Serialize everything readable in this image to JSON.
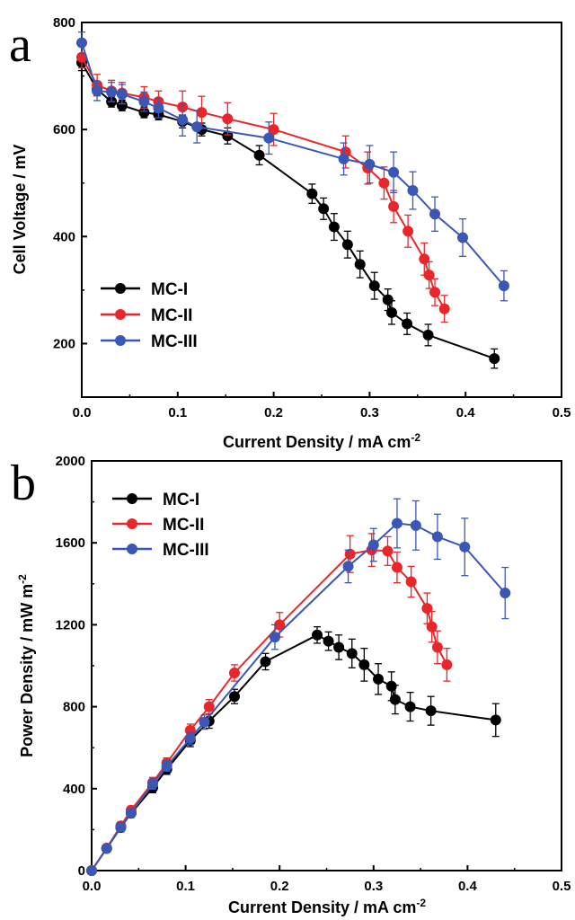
{
  "colors": {
    "MC-I": "#000000",
    "MC-II": "#e8262b",
    "MC-III": "#3a57b5"
  },
  "chart_data": [
    {
      "type": "line",
      "panel_label": "a",
      "xlabel": "Current Density / mA cm",
      "xlabel_sup": "-2",
      "ylabel": "Cell Voltage / mV",
      "xlim": [
        0.0,
        0.5
      ],
      "ylim": [
        100,
        800
      ],
      "x_ticks": [
        0.0,
        0.1,
        0.2,
        0.3,
        0.4,
        0.5
      ],
      "x_tick_labels": [
        "0.0",
        "0.1",
        "0.2",
        "0.3",
        "0.4",
        "0.5"
      ],
      "y_ticks": [
        200,
        400,
        600,
        800
      ],
      "y_tick_labels": [
        "200",
        "400",
        "600",
        "800"
      ],
      "legend_position": "bottom-left",
      "grid": false,
      "series": [
        {
          "name": "MC-I",
          "x": [
            0.0,
            0.016,
            0.031,
            0.042,
            0.065,
            0.08,
            0.105,
            0.125,
            0.152,
            0.185,
            0.24,
            0.252,
            0.263,
            0.277,
            0.29,
            0.305,
            0.319,
            0.323,
            0.339,
            0.361,
            0.43
          ],
          "y": [
            725,
            675,
            652,
            645,
            632,
            628,
            615,
            600,
            588,
            552,
            480,
            452,
            418,
            385,
            348,
            308,
            282,
            258,
            237,
            216,
            172
          ],
          "err": [
            15,
            12,
            10,
            10,
            10,
            10,
            12,
            12,
            15,
            18,
            18,
            20,
            25,
            25,
            25,
            25,
            20,
            22,
            20,
            20,
            18
          ]
        },
        {
          "name": "MC-II",
          "x": [
            0.0,
            0.016,
            0.031,
            0.042,
            0.065,
            0.08,
            0.105,
            0.125,
            0.152,
            0.2,
            0.275,
            0.298,
            0.315,
            0.325,
            0.34,
            0.357,
            0.362,
            0.368,
            0.378
          ],
          "y": [
            735,
            683,
            672,
            668,
            660,
            652,
            642,
            632,
            620,
            600,
            558,
            528,
            500,
            456,
            410,
            358,
            328,
            296,
            265
          ],
          "err": [
            20,
            20,
            20,
            20,
            20,
            20,
            30,
            30,
            30,
            30,
            30,
            30,
            30,
            30,
            30,
            30,
            25,
            25,
            25
          ]
        },
        {
          "name": "MC-III",
          "x": [
            0.0,
            0.016,
            0.031,
            0.042,
            0.065,
            0.08,
            0.105,
            0.12,
            0.195,
            0.273,
            0.3,
            0.325,
            0.345,
            0.368,
            0.397,
            0.44
          ],
          "y": [
            762,
            672,
            670,
            666,
            652,
            640,
            618,
            605,
            584,
            545,
            535,
            520,
            486,
            442,
            398,
            308
          ],
          "err": [
            20,
            18,
            18,
            18,
            18,
            18,
            30,
            30,
            30,
            30,
            35,
            38,
            35,
            32,
            35,
            28
          ]
        }
      ]
    },
    {
      "type": "line",
      "panel_label": "b",
      "xlabel": "Current Density / mA cm",
      "xlabel_sup": "-2",
      "ylabel": "Power Density / mW m",
      "ylabel_sup": "-2",
      "xlim": [
        0.0,
        0.5
      ],
      "ylim": [
        0,
        2000
      ],
      "x_ticks": [
        0.0,
        0.1,
        0.2,
        0.3,
        0.4,
        0.5
      ],
      "x_tick_labels": [
        "0.0",
        "0.1",
        "0.2",
        "0.3",
        "0.4",
        "0.5"
      ],
      "y_ticks": [
        0,
        400,
        800,
        1200,
        1600,
        2000
      ],
      "y_tick_labels": [
        "0",
        "400",
        "800",
        "1200",
        "1600",
        "2000"
      ],
      "legend_position": "top-left",
      "grid": false,
      "series": [
        {
          "name": "MC-I",
          "x": [
            0.0,
            0.016,
            0.031,
            0.042,
            0.065,
            0.08,
            0.105,
            0.125,
            0.152,
            0.185,
            0.24,
            0.252,
            0.263,
            0.277,
            0.29,
            0.305,
            0.319,
            0.323,
            0.339,
            0.361,
            0.43
          ],
          "y": [
            0,
            108,
            210,
            280,
            405,
            495,
            635,
            730,
            850,
            1020,
            1150,
            1120,
            1090,
            1060,
            1005,
            935,
            900,
            835,
            800,
            780,
            735
          ],
          "err": [
            0,
            15,
            20,
            20,
            25,
            25,
            30,
            35,
            35,
            40,
            40,
            45,
            60,
            70,
            80,
            75,
            70,
            70,
            70,
            70,
            80
          ]
        },
        {
          "name": "MC-II",
          "x": [
            0.0,
            0.016,
            0.031,
            0.042,
            0.065,
            0.08,
            0.105,
            0.125,
            0.152,
            0.2,
            0.275,
            0.298,
            0.315,
            0.325,
            0.34,
            0.357,
            0.362,
            0.368,
            0.378
          ],
          "y": [
            0,
            110,
            218,
            295,
            430,
            525,
            685,
            800,
            965,
            1200,
            1545,
            1565,
            1560,
            1480,
            1410,
            1280,
            1190,
            1090,
            1005
          ],
          "err": [
            0,
            15,
            20,
            20,
            25,
            25,
            30,
            35,
            40,
            60,
            90,
            80,
            70,
            75,
            75,
            75,
            75,
            80,
            80
          ]
        },
        {
          "name": "MC-III",
          "x": [
            0.0,
            0.016,
            0.031,
            0.042,
            0.065,
            0.08,
            0.105,
            0.12,
            0.195,
            0.273,
            0.3,
            0.325,
            0.345,
            0.368,
            0.397,
            0.44
          ],
          "y": [
            0,
            108,
            212,
            282,
            422,
            510,
            645,
            725,
            1140,
            1485,
            1590,
            1695,
            1685,
            1630,
            1580,
            1355
          ],
          "err": [
            0,
            15,
            20,
            20,
            25,
            25,
            30,
            35,
            60,
            80,
            80,
            120,
            120,
            110,
            140,
            125
          ]
        }
      ]
    }
  ]
}
